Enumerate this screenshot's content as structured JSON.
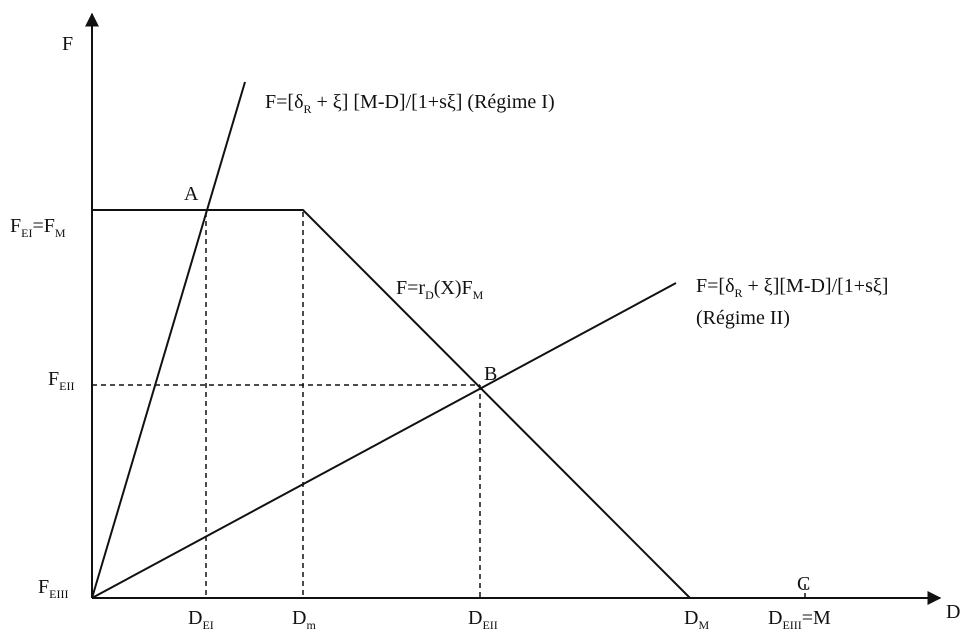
{
  "axes": {
    "y_label": "F",
    "x_label": "D"
  },
  "lines": {
    "regime1_label": "F=[δR + ξ] [M-D]/[1+sξ] (Régime I)",
    "regime2_label_line1": "F=[δR + ξ][M-D]/[1+sξ]",
    "regime2_label_line2": "(Régime II)",
    "capacity_label": "F=rD(X)FM"
  },
  "points": {
    "a": "A",
    "b": "B",
    "c": "C"
  },
  "y_ticks": {
    "fei_fm": "FEI=FM",
    "feii": "FEII",
    "feiii": "FEIII"
  },
  "x_ticks": {
    "dei": "DEI",
    "dm_small": "Dm",
    "deii": "DEII",
    "dm_big": "DM",
    "deiii_m": "DEIII=M"
  },
  "text_parts": {
    "F": "F",
    "D": "D",
    "M": "M",
    "EI": "EI",
    "EII": "EII",
    "EIII": "EIII",
    "m": "m",
    "R": "R",
    "r": "r",
    "dx": "(X)F",
    "eq": "=",
    "eqM": "=M",
    "part1": "=[δ",
    "part2": " + ξ] [M-D]/[1+sξ] (Régime I)",
    "part3": " + ξ][M-D]/[1+sξ]",
    "regime2": "(Régime II)"
  }
}
